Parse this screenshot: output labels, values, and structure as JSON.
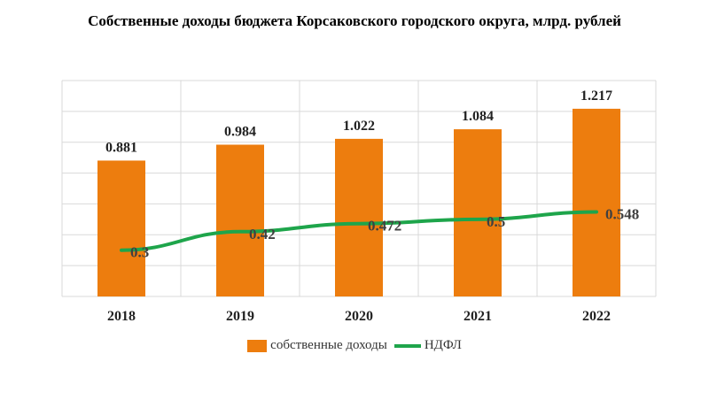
{
  "title": "Собственные доходы бюджета Корсаковского городского округа, млрд. рублей",
  "colors": {
    "bar": "#ed7d0e",
    "line": "#1ea54b",
    "grid": "#d9d9d9",
    "line_label": "#404040"
  },
  "chart_data": {
    "type": "bar",
    "title": "Собственные доходы бюджета Корсаковского городского округа, млрд. рублей",
    "categories": [
      "2018",
      "2019",
      "2020",
      "2021",
      "2022"
    ],
    "series": [
      {
        "name": "собственные доходы",
        "type": "bar",
        "values": [
          0.881,
          0.984,
          1.022,
          1.084,
          1.217
        ],
        "labels": [
          "0.881",
          "0.984",
          "1.022",
          "1.084",
          "1.217"
        ]
      },
      {
        "name": "НДФЛ",
        "type": "line",
        "values": [
          0.3,
          0.42,
          0.472,
          0.5,
          0.548
        ],
        "labels": [
          "0.3",
          "0.42",
          "0.472",
          "0.5",
          "0.548"
        ]
      }
    ],
    "ylim": [
      0,
      1.4
    ],
    "grid": true,
    "legend": "bottom",
    "xlabel": "",
    "ylabel": ""
  }
}
